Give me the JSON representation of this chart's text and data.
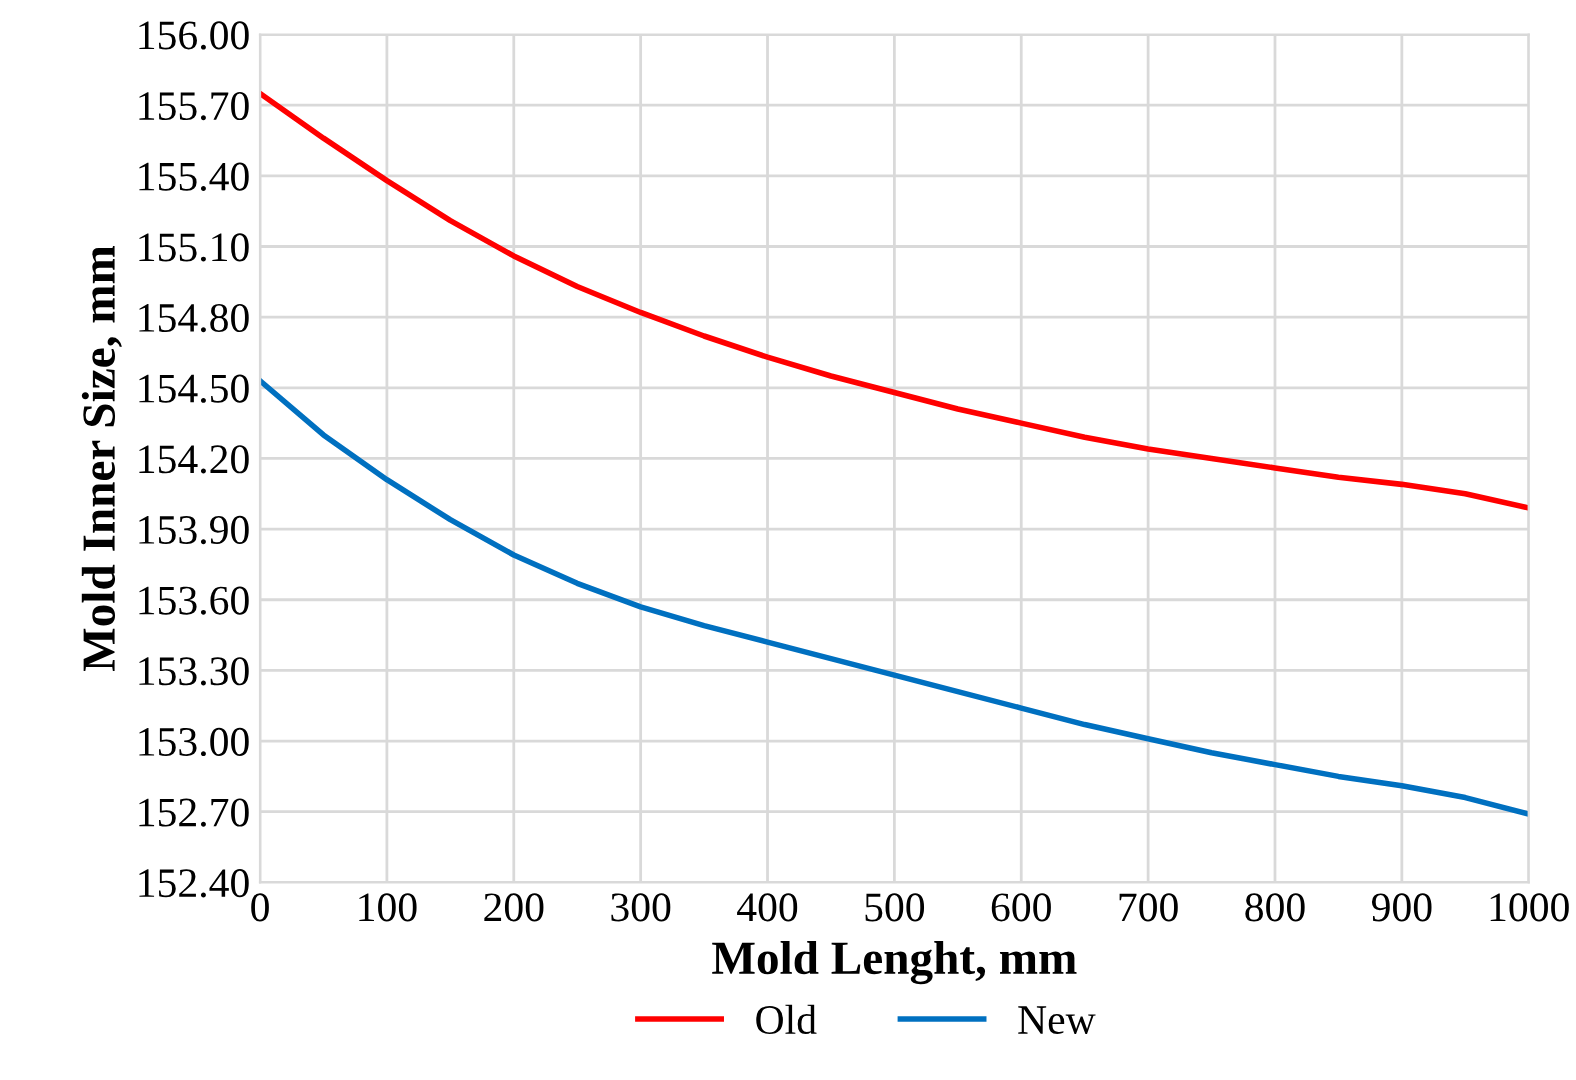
{
  "chart_data": {
    "type": "line",
    "xlabel": "Mold Lenght, mm",
    "ylabel": "Mold Inner Size, mm",
    "xlim": [
      0,
      1000
    ],
    "xticks": [
      0,
      100,
      200,
      300,
      400,
      500,
      600,
      700,
      800,
      900,
      1000
    ],
    "ylim": [
      152.4,
      156.0
    ],
    "yticks": [
      {
        "value": 152.4,
        "label": "152.40"
      },
      {
        "value": 152.7,
        "label": "152.70"
      },
      {
        "value": 153.0,
        "label": "153.00"
      },
      {
        "value": 153.3,
        "label": "153.30"
      },
      {
        "value": 153.6,
        "label": "153.60"
      },
      {
        "value": 153.9,
        "label": "153.90"
      },
      {
        "value": 154.2,
        "label": "154.20"
      },
      {
        "value": 154.5,
        "label": "154.50"
      },
      {
        "value": 154.8,
        "label": "154.80"
      },
      {
        "value": 155.1,
        "label": "155.10"
      },
      {
        "value": 155.4,
        "label": "155.40"
      },
      {
        "value": 155.7,
        "label": "155.70"
      },
      {
        "value": 156.0,
        "label": "156.00"
      }
    ],
    "x": [
      0,
      50,
      100,
      150,
      200,
      250,
      300,
      350,
      400,
      450,
      500,
      550,
      600,
      650,
      700,
      750,
      800,
      850,
      900,
      950,
      1000
    ],
    "series": [
      {
        "name": "Old",
        "color": "#ff0000",
        "values": [
          155.75,
          155.56,
          155.38,
          155.21,
          155.06,
          154.93,
          154.82,
          154.72,
          154.63,
          154.55,
          154.48,
          154.41,
          154.35,
          154.29,
          154.24,
          154.2,
          154.16,
          154.12,
          154.09,
          154.05,
          153.99
        ]
      },
      {
        "name": "New",
        "color": "#0070c0",
        "values": [
          154.53,
          154.3,
          154.11,
          153.94,
          153.79,
          153.67,
          153.57,
          153.49,
          153.42,
          153.35,
          153.28,
          153.21,
          153.14,
          153.07,
          153.01,
          152.95,
          152.9,
          152.85,
          152.81,
          152.76,
          152.69
        ]
      }
    ],
    "grid": true,
    "legend": "bottom",
    "marker": "none",
    "line_style": "solid"
  }
}
